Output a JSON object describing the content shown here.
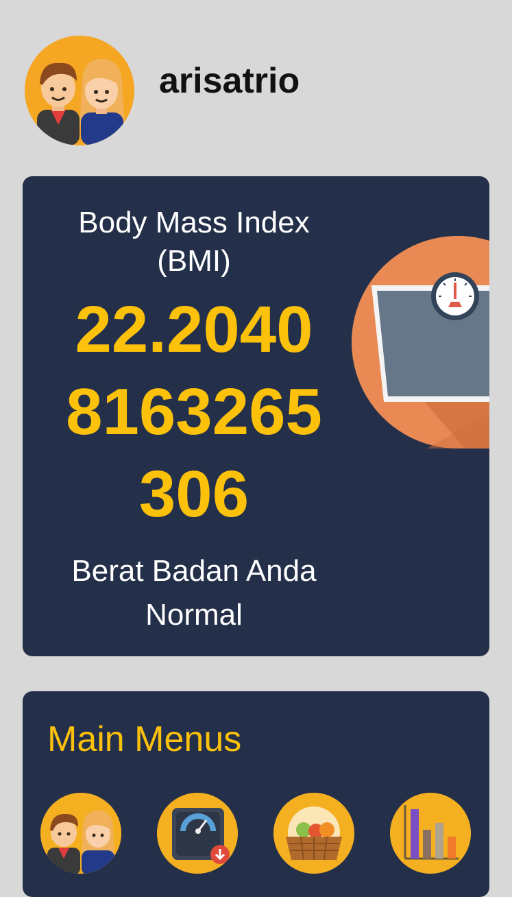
{
  "header": {
    "username": "arisatrio",
    "avatar_icon": "couple-avatar-icon"
  },
  "bmi": {
    "title": "Body Mass Index (BMI)",
    "value": "22.20408163265306",
    "status": "Berat Badan Anda Normal",
    "illustration_icon": "weighing-scale-icon"
  },
  "menu": {
    "title": "Main Menus",
    "items": [
      {
        "icon": "profile-couple-icon"
      },
      {
        "icon": "scale-gauge-icon"
      },
      {
        "icon": "fruit-basket-icon"
      },
      {
        "icon": "bar-chart-icon"
      }
    ]
  },
  "colors": {
    "background": "#d8d8d8",
    "card": "#24304a",
    "accent": "#fcc10a",
    "avatar_bg": "#f5a623"
  }
}
